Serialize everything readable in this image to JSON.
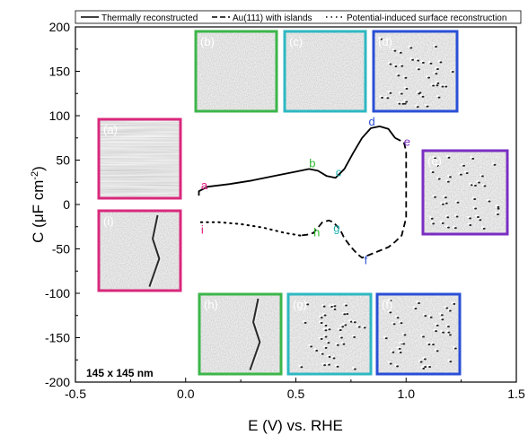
{
  "chart_data": {
    "type": "line",
    "xlabel": "E (V) vs. RHE",
    "ylabel_main": "C (μF cm",
    "ylabel_sup": "-2",
    "ylabel_tail": ")",
    "xlim": [
      -0.5,
      1.5
    ],
    "ylim": [
      -200,
      200
    ],
    "x_ticks": [
      "-0.5",
      "0.0",
      "0.5",
      "1.0",
      "1.5"
    ],
    "y_ticks": [
      "200",
      "150",
      "100",
      "50",
      "0",
      "-50",
      "-100",
      "-150",
      "-200"
    ],
    "legend": [
      {
        "label": "Thermally reconstructed",
        "style": "solid"
      },
      {
        "label": "Au(111) with islands",
        "style": "dashed"
      },
      {
        "label": "Potential-induced surface reconstruction",
        "style": "dotted"
      }
    ],
    "series": [
      {
        "name": "Thermally reconstructed",
        "style": "solid",
        "x": [
          0.06,
          0.06,
          0.1,
          0.2,
          0.3,
          0.4,
          0.5,
          0.56,
          0.6,
          0.64,
          0.68,
          0.72,
          0.76,
          0.8,
          0.84,
          0.88,
          0.92,
          0.95
        ],
        "y": [
          10,
          15,
          20,
          23,
          27,
          32,
          37,
          40,
          38,
          32,
          30,
          40,
          58,
          75,
          86,
          88,
          85,
          75
        ]
      },
      {
        "name": "Au(111) with islands",
        "style": "dashed",
        "x": [
          0.95,
          0.99,
          1.0,
          1.0,
          0.98,
          0.95,
          0.92,
          0.88,
          0.85,
          0.82,
          0.8,
          0.78,
          0.75,
          0.72,
          0.7,
          0.67,
          0.65,
          0.62,
          0.6,
          0.58,
          0.55,
          0.52
        ],
        "y": [
          75,
          70,
          60,
          -15,
          -35,
          -42,
          -48,
          -52,
          -55,
          -58,
          -60,
          -56,
          -48,
          -38,
          -28,
          -20,
          -18,
          -20,
          -26,
          -32,
          -34,
          -35
        ]
      },
      {
        "name": "Potential-induced surface reconstruction",
        "style": "dotted",
        "x": [
          0.52,
          0.45,
          0.35,
          0.25,
          0.15,
          0.06
        ],
        "y": [
          -35,
          -32,
          -26,
          -22,
          -20,
          -20
        ]
      }
    ],
    "point_labels": [
      {
        "text": "a",
        "x": 0.07,
        "y": 17,
        "color": "#e0197d"
      },
      {
        "text": "b",
        "x": 0.56,
        "y": 42,
        "color": "#2eb82e"
      },
      {
        "text": "c",
        "x": 0.68,
        "y": 32,
        "color": "#1fb3b3"
      },
      {
        "text": "d",
        "x": 0.83,
        "y": 89,
        "color": "#2a4fd6"
      },
      {
        "text": "e",
        "x": 0.99,
        "y": 66,
        "color": "#7a2ec2"
      },
      {
        "text": "f",
        "x": 0.81,
        "y": -67,
        "color": "#2a4fd6"
      },
      {
        "text": "g",
        "x": 0.67,
        "y": -31,
        "color": "#1fb3b3"
      },
      {
        "text": "h",
        "x": 0.58,
        "y": -36,
        "color": "#2eb82e"
      },
      {
        "text": "i",
        "x": 0.07,
        "y": -33,
        "color": "#e0197d"
      }
    ],
    "insets": [
      {
        "label": "(a)",
        "color": "#d9287c",
        "texture": "streaks"
      },
      {
        "label": "(b)",
        "color": "#3cb64a",
        "texture": "noise"
      },
      {
        "label": "(c)",
        "color": "#2eb8c2",
        "texture": "noise"
      },
      {
        "label": "(d)",
        "color": "#2a4fd6",
        "texture": "dots"
      },
      {
        "label": "(e)",
        "color": "#7a2ec2",
        "texture": "dots"
      },
      {
        "label": "(f)",
        "color": "#2a4fd6",
        "texture": "dots"
      },
      {
        "label": "(g)",
        "color": "#2eb8c2",
        "texture": "dots"
      },
      {
        "label": "(h)",
        "color": "#3cb64a",
        "texture": "steps"
      },
      {
        "label": "(i)",
        "color": "#d9287c",
        "texture": "steps"
      }
    ],
    "scale_label": "145 x 145 nm",
    "grid": false
  }
}
